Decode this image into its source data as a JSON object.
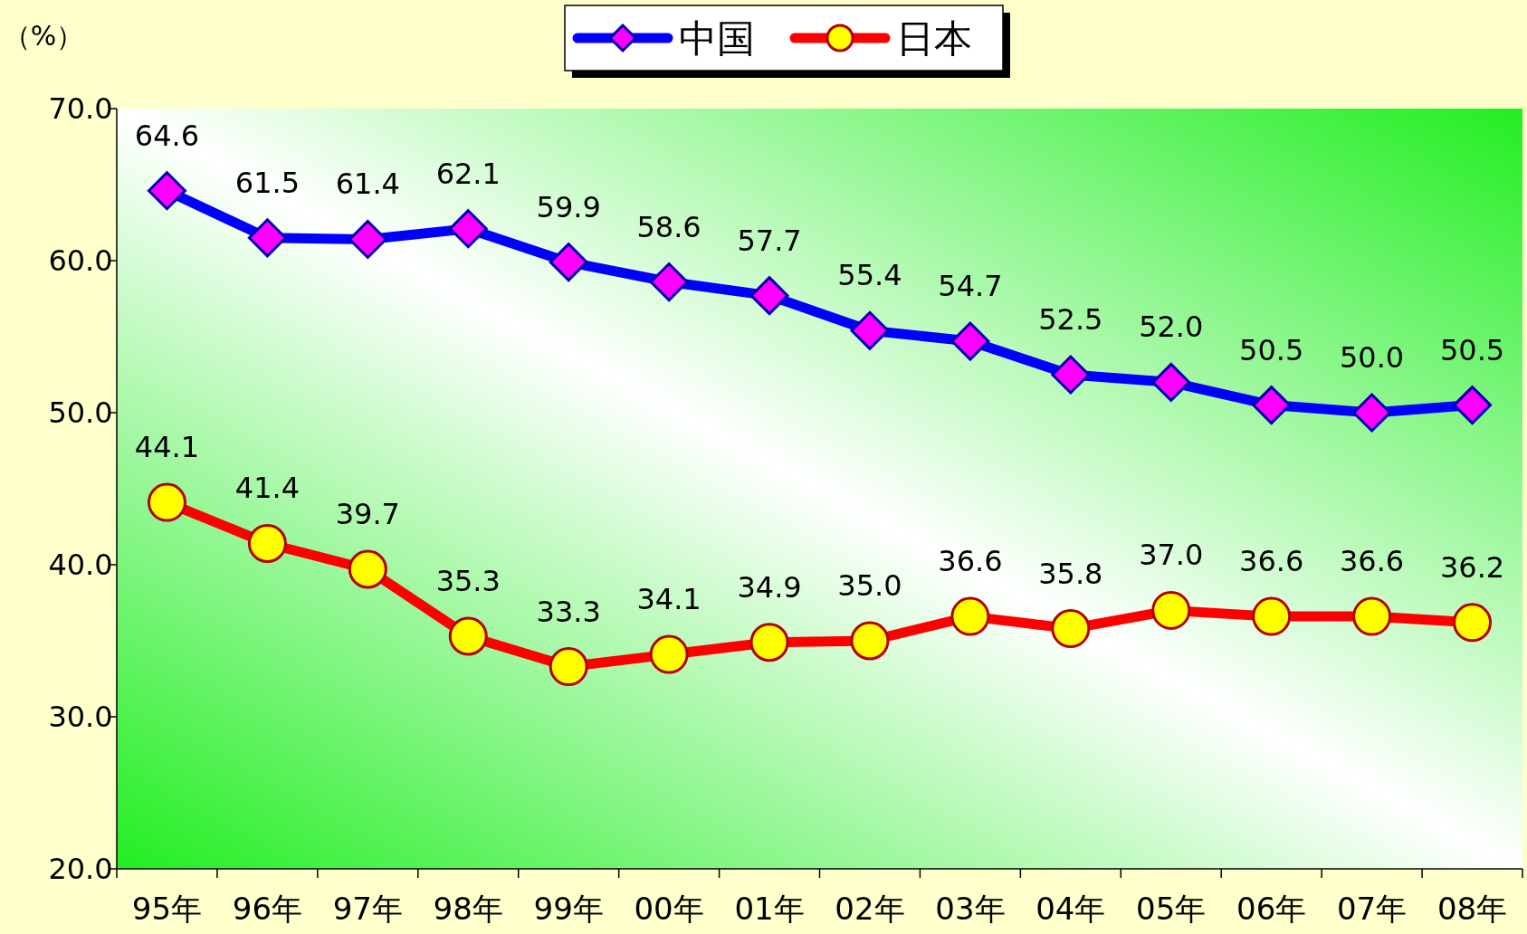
{
  "chart_data": {
    "type": "line",
    "ylabel": "（%）",
    "categories": [
      "95年",
      "96年",
      "97年",
      "98年",
      "99年",
      "00年",
      "01年",
      "02年",
      "03年",
      "04年",
      "05年",
      "06年",
      "07年",
      "08年"
    ],
    "ylim": [
      20,
      70
    ],
    "yticks": [
      {
        "value": 20,
        "label": "20.0"
      },
      {
        "value": 30,
        "label": "30.0"
      },
      {
        "value": 40,
        "label": "40.0"
      },
      {
        "value": 50,
        "label": "50.0"
      },
      {
        "value": 60,
        "label": "60.0"
      },
      {
        "value": 70,
        "label": "70.0"
      }
    ],
    "legend": "top",
    "grid": false,
    "series": [
      {
        "name": "中国",
        "color": "#0000ff",
        "marker": "diamond",
        "values": [
          64.6,
          61.5,
          61.4,
          62.1,
          59.9,
          58.6,
          57.7,
          55.4,
          54.7,
          52.5,
          52.0,
          50.5,
          50.0,
          50.5
        ],
        "value_labels": [
          "64.6",
          "61.5",
          "61.4",
          "62.1",
          "59.9",
          "58.6",
          "57.7",
          "55.4",
          "54.7",
          "52.5",
          "52.0",
          "50.5",
          "50.0",
          "50.5"
        ]
      },
      {
        "name": "日本",
        "color": "#ff0000",
        "marker": "circle",
        "values": [
          44.1,
          41.4,
          39.7,
          35.3,
          33.3,
          34.1,
          34.9,
          35.0,
          36.6,
          35.8,
          37.0,
          36.6,
          36.6,
          36.2
        ],
        "value_labels": [
          "44.1",
          "41.4",
          "39.7",
          "35.3",
          "33.3",
          "34.1",
          "34.9",
          "35.0",
          "36.6",
          "35.8",
          "37.0",
          "36.6",
          "36.6",
          "36.2"
        ]
      }
    ]
  }
}
